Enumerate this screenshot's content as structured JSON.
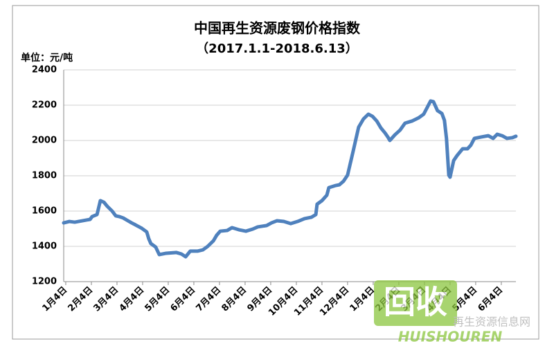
{
  "chart_data": {
    "type": "line",
    "title": "中国再生资源废钢价格指数",
    "subtitle": "（2017.1.1-2018.6.13）",
    "unit_label": "单位：元/吨",
    "xlim": [
      -0.08,
      17.57
    ],
    "xticks": [
      {
        "value": 0,
        "label": "1月4日"
      },
      {
        "value": 1,
        "label": "2月4日"
      },
      {
        "value": 2,
        "label": "3月4日"
      },
      {
        "value": 3,
        "label": "4月4日"
      },
      {
        "value": 4,
        "label": "5月4日"
      },
      {
        "value": 5,
        "label": "6月4日"
      },
      {
        "value": 6,
        "label": "7月4日"
      },
      {
        "value": 7,
        "label": "8月4日"
      },
      {
        "value": 8,
        "label": "9月4日"
      },
      {
        "value": 9,
        "label": "10月4日"
      },
      {
        "value": 10,
        "label": "11月4日"
      },
      {
        "value": 11,
        "label": "12月4日"
      },
      {
        "value": 12,
        "label": "1月4日"
      },
      {
        "value": 13,
        "label": "2月4日"
      },
      {
        "value": 14,
        "label": "3月4日"
      },
      {
        "value": 15,
        "label": "4月4日"
      },
      {
        "value": 16,
        "label": "5月4日"
      },
      {
        "value": 17,
        "label": "6月4日"
      }
    ],
    "ylim": [
      1200,
      2400
    ],
    "yticks": [
      1200,
      1400,
      1600,
      1800,
      2000,
      2200,
      2400
    ],
    "grid": true,
    "x": [
      -0.08,
      0.14,
      0.35,
      0.95,
      1.03,
      1.22,
      1.35,
      1.49,
      1.62,
      1.81,
      1.95,
      2.08,
      2.24,
      2.38,
      2.57,
      2.73,
      2.97,
      3.16,
      3.24,
      3.32,
      3.51,
      3.65,
      3.92,
      4.32,
      4.51,
      4.68,
      4.86,
      5.14,
      5.35,
      5.54,
      5.76,
      5.89,
      6.03,
      6.3,
      6.49,
      6.76,
      7.03,
      7.3,
      7.49,
      7.84,
      8.03,
      8.24,
      8.51,
      8.78,
      9.05,
      9.32,
      9.59,
      9.76,
      9.81,
      10,
      10.19,
      10.27,
      10.54,
      10.68,
      10.84,
      11,
      11.22,
      11.43,
      11.62,
      11.81,
      11.97,
      12.14,
      12.3,
      12.46,
      12.57,
      12.65,
      12.84,
      13.05,
      13.24,
      13.51,
      13.78,
      13.97,
      14.14,
      14.24,
      14.35,
      14.51,
      14.68,
      14.78,
      14.86,
      14.95,
      15,
      15.14,
      15.27,
      15.49,
      15.68,
      15.81,
      15.95,
      16.22,
      16.49,
      16.68,
      16.84,
      17.03,
      17.22,
      17.43,
      17.57
    ],
    "series": [
      {
        "color": "#4f81bd",
        "values": [
          1533,
          1541,
          1537,
          1553,
          1569,
          1580,
          1659,
          1650,
          1627,
          1600,
          1573,
          1569,
          1561,
          1549,
          1533,
          1521,
          1502,
          1482,
          1443,
          1416,
          1396,
          1353,
          1361,
          1365,
          1357,
          1341,
          1373,
          1373,
          1380,
          1400,
          1431,
          1463,
          1486,
          1490,
          1506,
          1494,
          1486,
          1498,
          1510,
          1518,
          1533,
          1545,
          1541,
          1529,
          1541,
          1557,
          1565,
          1580,
          1639,
          1659,
          1690,
          1733,
          1745,
          1749,
          1769,
          1804,
          1941,
          2075,
          2122,
          2149,
          2137,
          2110,
          2071,
          2043,
          2020,
          2000,
          2031,
          2059,
          2098,
          2110,
          2129,
          2149,
          2196,
          2224,
          2220,
          2169,
          2153,
          2114,
          2012,
          1804,
          1792,
          1886,
          1914,
          1953,
          1953,
          1973,
          2012,
          2020,
          2027,
          2012,
          2035,
          2027,
          2012,
          2016,
          2024
        ]
      }
    ]
  },
  "watermark": {
    "logo": "回收",
    "brand": "HUISHOUREN",
    "site": "再生资源信息网"
  }
}
